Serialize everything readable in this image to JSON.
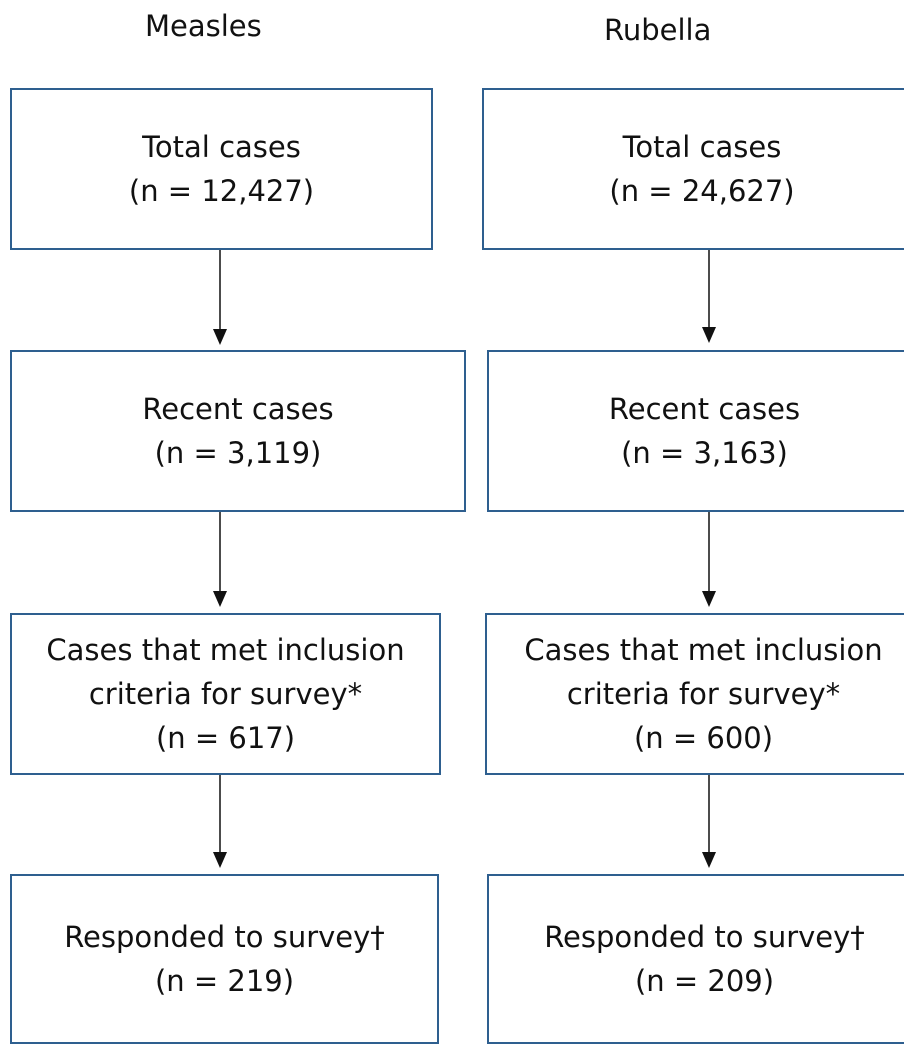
{
  "columns": [
    {
      "title": "Measles",
      "boxes": [
        {
          "lines": [
            "Total cases",
            "(n = 12,427)"
          ]
        },
        {
          "lines": [
            "Recent cases",
            "(n = 3,119)"
          ]
        },
        {
          "lines": [
            "Cases that met inclusion",
            "criteria for survey*",
            "(n = 617)"
          ]
        },
        {
          "lines": [
            "Responded to survey†",
            "(n = 219)"
          ]
        }
      ]
    },
    {
      "title": "Rubella",
      "boxes": [
        {
          "lines": [
            "Total cases",
            "(n = 24,627)"
          ]
        },
        {
          "lines": [
            "Recent cases",
            "(n = 3,163)"
          ]
        },
        {
          "lines": [
            "Cases that met inclusion",
            "criteria for survey*",
            "(n = 600)"
          ]
        },
        {
          "lines": [
            "Responded to survey†",
            "(n = 209)"
          ]
        }
      ]
    }
  ],
  "colors": {
    "box_border": "#2e5f8f",
    "arrow": "#111111"
  }
}
